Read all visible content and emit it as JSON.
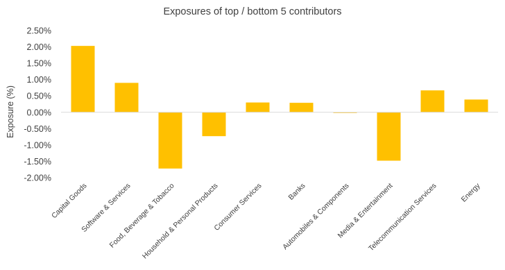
{
  "chart_data": {
    "type": "bar",
    "title": "Exposures of top / bottom 5 contributors",
    "ylabel": "Exposure (%)",
    "xlabel": "",
    "ylim": [
      -2.0,
      2.5
    ],
    "yticks": [
      2.5,
      2.0,
      1.5,
      1.0,
      0.5,
      0.0,
      -0.5,
      -1.0,
      -1.5,
      -2.0
    ],
    "ytick_labels": [
      "2.50%",
      "2.00%",
      "1.50%",
      "1.00%",
      "0.50%",
      "0.00%",
      "-0.50%",
      "-1.00%",
      "-1.50%",
      "-2.00%"
    ],
    "grid": false,
    "bar_color": "#FFC000",
    "categories": [
      "Capital Goods",
      "Software & Services",
      "Food, Beverage & Tobacco",
      "Household & Personal Products",
      "Consumer Services",
      "Banks",
      "Automobiles & Components",
      "Media & Entertainment",
      "Telecommunication Services",
      "Energy"
    ],
    "values": [
      2.03,
      0.9,
      -1.72,
      -0.73,
      0.3,
      0.29,
      -0.02,
      -1.48,
      0.67,
      0.39
    ]
  }
}
